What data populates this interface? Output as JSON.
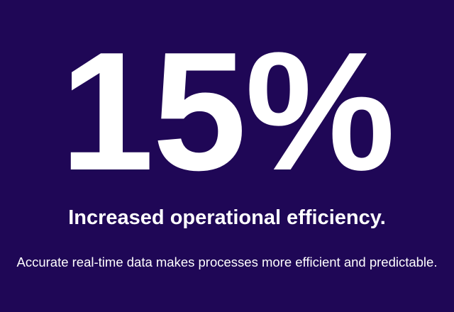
{
  "stat": {
    "value": "15%",
    "headline": "Increased operational efficiency.",
    "description": "Accurate real-time data makes processes more efficient and predictable."
  }
}
